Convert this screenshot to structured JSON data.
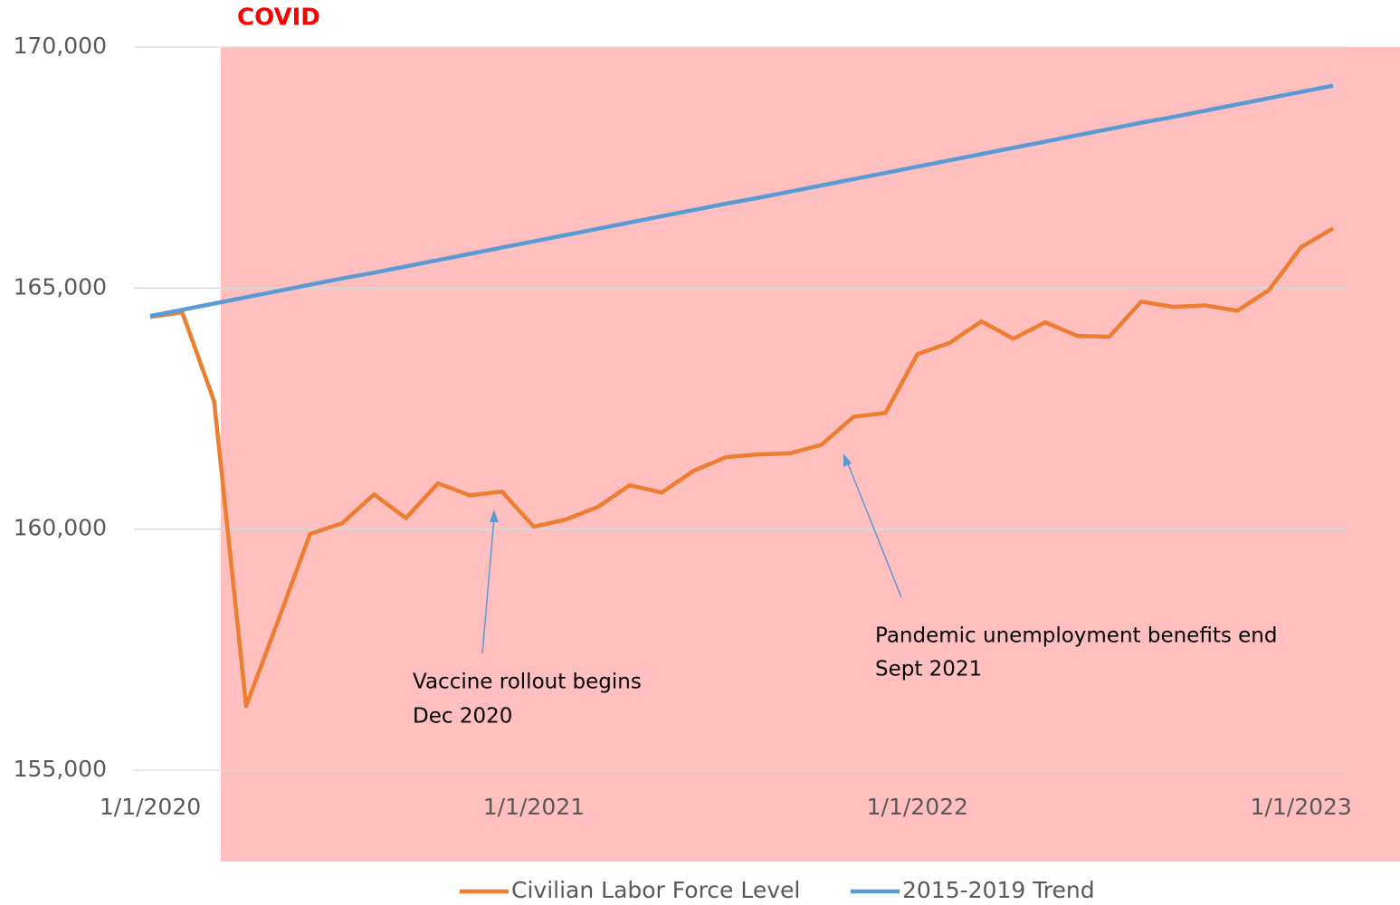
{
  "chart_data": {
    "type": "line",
    "categories": [
      "1/1/2020",
      null,
      null,
      null,
      null,
      null,
      null,
      null,
      null,
      null,
      null,
      null,
      "1/1/2021",
      null,
      null,
      null,
      null,
      null,
      null,
      null,
      null,
      null,
      null,
      null,
      "1/1/2022",
      null,
      null,
      null,
      null,
      null,
      null,
      null,
      null,
      null,
      null,
      null,
      "1/1/2023",
      null
    ],
    "series": [
      {
        "name": "Civilian Labor Force Level",
        "color": "#ed7d31",
        "values": [
          164400,
          164500,
          162650,
          156330,
          158100,
          159900,
          160120,
          160720,
          160230,
          160950,
          160700,
          160780,
          160050,
          160200,
          160460,
          160910,
          160760,
          161210,
          161490,
          161550,
          161570,
          161750,
          162330,
          162410,
          163630,
          163860,
          164310,
          163950,
          164290,
          164010,
          163990,
          164720,
          164610,
          164640,
          164530,
          164960,
          165850,
          166240
        ]
      },
      {
        "name": "2015-2019 Trend",
        "color": "#5b9bd5",
        "values": [
          164420,
          164550,
          164680,
          164810,
          164940,
          165070,
          165200,
          165320,
          165450,
          165580,
          165710,
          165840,
          165970,
          166100,
          166230,
          166360,
          166490,
          166620,
          166750,
          166870,
          167000,
          167130,
          167260,
          167390,
          167520,
          167650,
          167780,
          167910,
          168040,
          168170,
          168300,
          168430,
          168550,
          168680,
          168810,
          168940,
          169070,
          169200
        ]
      }
    ],
    "ylim": [
      155000,
      170000
    ],
    "yticks": [
      {
        "value": 155000,
        "label": "155,000"
      },
      {
        "value": 160000,
        "label": "160,000"
      },
      {
        "value": 165000,
        "label": "165,000"
      },
      {
        "value": 170000,
        "label": "170,000"
      }
    ],
    "grid": true,
    "legend": "bottom",
    "shaded_region": {
      "label": "COVID",
      "color": "#ffbfbf"
    },
    "annotations": [
      {
        "lines": [
          "Vaccine rollout begins",
          "Dec 2020"
        ]
      },
      {
        "lines": [
          "Pandemic unemployment benefits end",
          "Sept 2021"
        ]
      }
    ]
  }
}
